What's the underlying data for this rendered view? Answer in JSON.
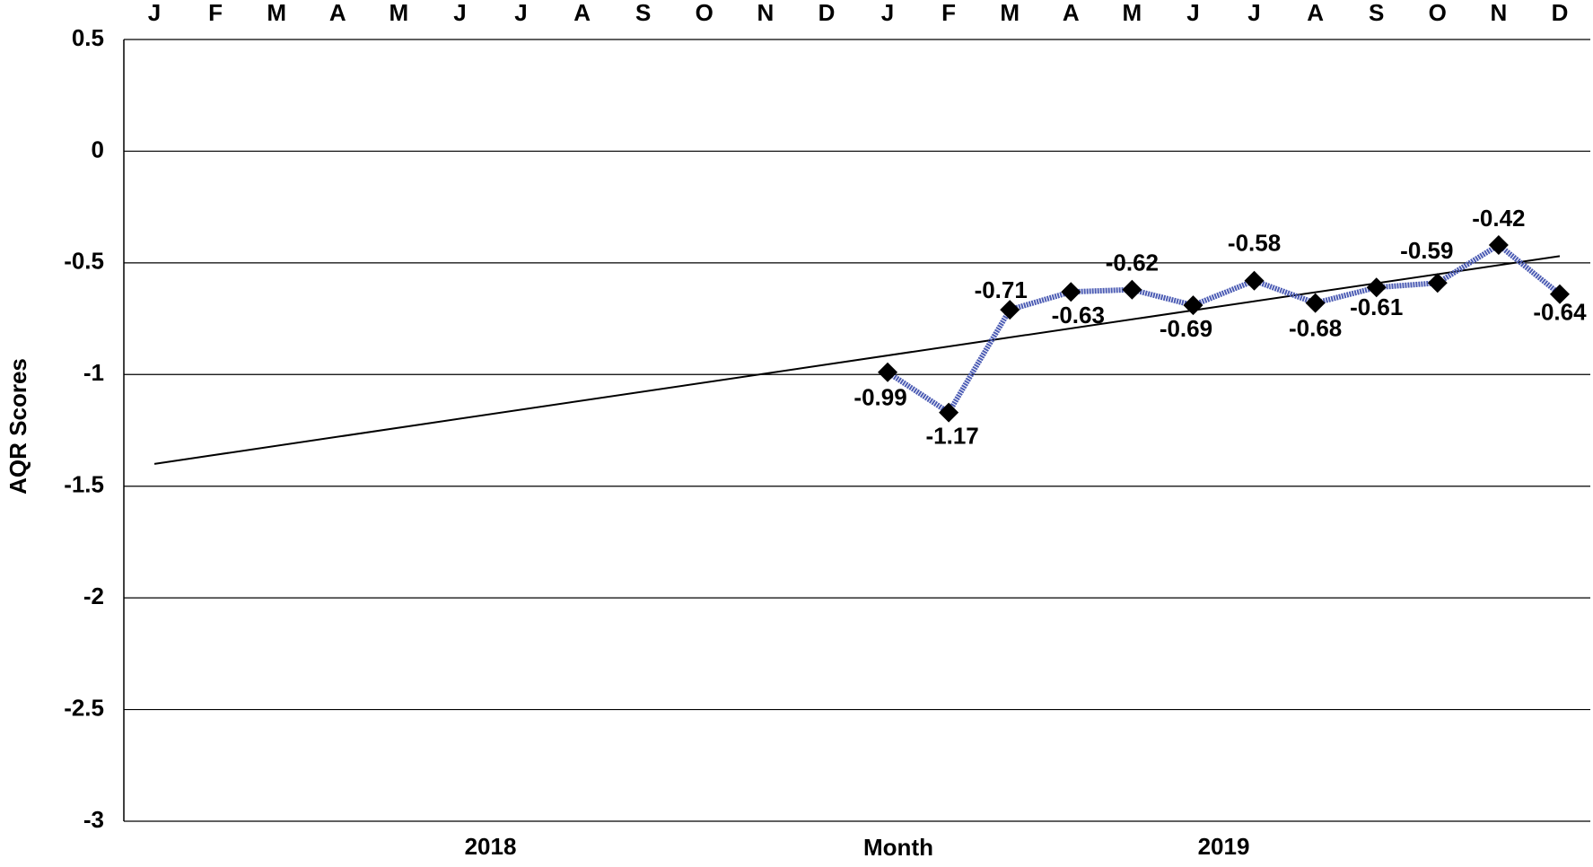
{
  "chart_data": {
    "type": "line",
    "y_label": "AQR Scores",
    "x_label": "Month",
    "year_labels": [
      "2018",
      "2019"
    ],
    "categories": [
      "J",
      "F",
      "M",
      "A",
      "M",
      "J",
      "J",
      "A",
      "S",
      "O",
      "N",
      "D",
      "J",
      "F",
      "M",
      "A",
      "M",
      "J",
      "J",
      "A",
      "S",
      "O",
      "N",
      "D"
    ],
    "series": [
      {
        "color": "#4c5cb4",
        "marker_color": "#000000",
        "values": [
          null,
          null,
          null,
          null,
          null,
          null,
          null,
          null,
          null,
          null,
          null,
          null,
          -0.99,
          -1.17,
          -0.71,
          -0.63,
          -0.62,
          -0.69,
          -0.58,
          -0.68,
          -0.61,
          -0.59,
          -0.42,
          -0.64
        ]
      }
    ],
    "trendline": {
      "color": "#000000",
      "values": [
        -1.4,
        -0.47
      ]
    },
    "ylim": [
      -3,
      0.5
    ],
    "yticks": [
      0.5,
      0,
      -0.5,
      -1,
      -1.5,
      -2,
      -2.5,
      -3
    ],
    "grid": true
  }
}
